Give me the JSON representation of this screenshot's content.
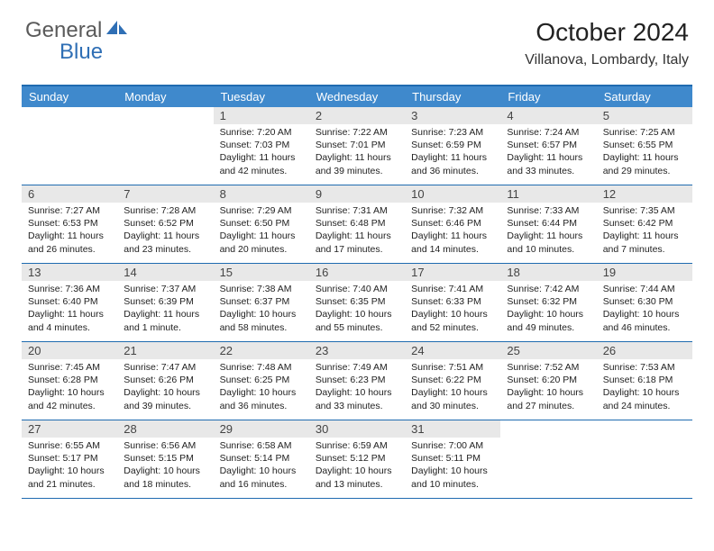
{
  "logo": {
    "part1": "General",
    "part2": "Blue"
  },
  "title": "October 2024",
  "location": "Villanova, Lombardy, Italy",
  "colors": {
    "header_bg": "#3f89cc",
    "border": "#1f6bb0",
    "daynum_bg": "#e8e8e8",
    "logo_gray": "#5a5a5a",
    "logo_blue": "#2f6fb5"
  },
  "day_names": [
    "Sunday",
    "Monday",
    "Tuesday",
    "Wednesday",
    "Thursday",
    "Friday",
    "Saturday"
  ],
  "weeks": [
    [
      {
        "empty": true
      },
      {
        "empty": true
      },
      {
        "n": "1",
        "sunrise": "7:20 AM",
        "sunset": "7:03 PM",
        "daylight": "11 hours and 42 minutes."
      },
      {
        "n": "2",
        "sunrise": "7:22 AM",
        "sunset": "7:01 PM",
        "daylight": "11 hours and 39 minutes."
      },
      {
        "n": "3",
        "sunrise": "7:23 AM",
        "sunset": "6:59 PM",
        "daylight": "11 hours and 36 minutes."
      },
      {
        "n": "4",
        "sunrise": "7:24 AM",
        "sunset": "6:57 PM",
        "daylight": "11 hours and 33 minutes."
      },
      {
        "n": "5",
        "sunrise": "7:25 AM",
        "sunset": "6:55 PM",
        "daylight": "11 hours and 29 minutes."
      }
    ],
    [
      {
        "n": "6",
        "sunrise": "7:27 AM",
        "sunset": "6:53 PM",
        "daylight": "11 hours and 26 minutes."
      },
      {
        "n": "7",
        "sunrise": "7:28 AM",
        "sunset": "6:52 PM",
        "daylight": "11 hours and 23 minutes."
      },
      {
        "n": "8",
        "sunrise": "7:29 AM",
        "sunset": "6:50 PM",
        "daylight": "11 hours and 20 minutes."
      },
      {
        "n": "9",
        "sunrise": "7:31 AM",
        "sunset": "6:48 PM",
        "daylight": "11 hours and 17 minutes."
      },
      {
        "n": "10",
        "sunrise": "7:32 AM",
        "sunset": "6:46 PM",
        "daylight": "11 hours and 14 minutes."
      },
      {
        "n": "11",
        "sunrise": "7:33 AM",
        "sunset": "6:44 PM",
        "daylight": "11 hours and 10 minutes."
      },
      {
        "n": "12",
        "sunrise": "7:35 AM",
        "sunset": "6:42 PM",
        "daylight": "11 hours and 7 minutes."
      }
    ],
    [
      {
        "n": "13",
        "sunrise": "7:36 AM",
        "sunset": "6:40 PM",
        "daylight": "11 hours and 4 minutes."
      },
      {
        "n": "14",
        "sunrise": "7:37 AM",
        "sunset": "6:39 PM",
        "daylight": "11 hours and 1 minute."
      },
      {
        "n": "15",
        "sunrise": "7:38 AM",
        "sunset": "6:37 PM",
        "daylight": "10 hours and 58 minutes."
      },
      {
        "n": "16",
        "sunrise": "7:40 AM",
        "sunset": "6:35 PM",
        "daylight": "10 hours and 55 minutes."
      },
      {
        "n": "17",
        "sunrise": "7:41 AM",
        "sunset": "6:33 PM",
        "daylight": "10 hours and 52 minutes."
      },
      {
        "n": "18",
        "sunrise": "7:42 AM",
        "sunset": "6:32 PM",
        "daylight": "10 hours and 49 minutes."
      },
      {
        "n": "19",
        "sunrise": "7:44 AM",
        "sunset": "6:30 PM",
        "daylight": "10 hours and 46 minutes."
      }
    ],
    [
      {
        "n": "20",
        "sunrise": "7:45 AM",
        "sunset": "6:28 PM",
        "daylight": "10 hours and 42 minutes."
      },
      {
        "n": "21",
        "sunrise": "7:47 AM",
        "sunset": "6:26 PM",
        "daylight": "10 hours and 39 minutes."
      },
      {
        "n": "22",
        "sunrise": "7:48 AM",
        "sunset": "6:25 PM",
        "daylight": "10 hours and 36 minutes."
      },
      {
        "n": "23",
        "sunrise": "7:49 AM",
        "sunset": "6:23 PM",
        "daylight": "10 hours and 33 minutes."
      },
      {
        "n": "24",
        "sunrise": "7:51 AM",
        "sunset": "6:22 PM",
        "daylight": "10 hours and 30 minutes."
      },
      {
        "n": "25",
        "sunrise": "7:52 AM",
        "sunset": "6:20 PM",
        "daylight": "10 hours and 27 minutes."
      },
      {
        "n": "26",
        "sunrise": "7:53 AM",
        "sunset": "6:18 PM",
        "daylight": "10 hours and 24 minutes."
      }
    ],
    [
      {
        "n": "27",
        "sunrise": "6:55 AM",
        "sunset": "5:17 PM",
        "daylight": "10 hours and 21 minutes."
      },
      {
        "n": "28",
        "sunrise": "6:56 AM",
        "sunset": "5:15 PM",
        "daylight": "10 hours and 18 minutes."
      },
      {
        "n": "29",
        "sunrise": "6:58 AM",
        "sunset": "5:14 PM",
        "daylight": "10 hours and 16 minutes."
      },
      {
        "n": "30",
        "sunrise": "6:59 AM",
        "sunset": "5:12 PM",
        "daylight": "10 hours and 13 minutes."
      },
      {
        "n": "31",
        "sunrise": "7:00 AM",
        "sunset": "5:11 PM",
        "daylight": "10 hours and 10 minutes."
      },
      {
        "empty": true
      },
      {
        "empty": true
      }
    ]
  ],
  "labels": {
    "sunrise": "Sunrise:",
    "sunset": "Sunset:",
    "daylight": "Daylight:"
  }
}
